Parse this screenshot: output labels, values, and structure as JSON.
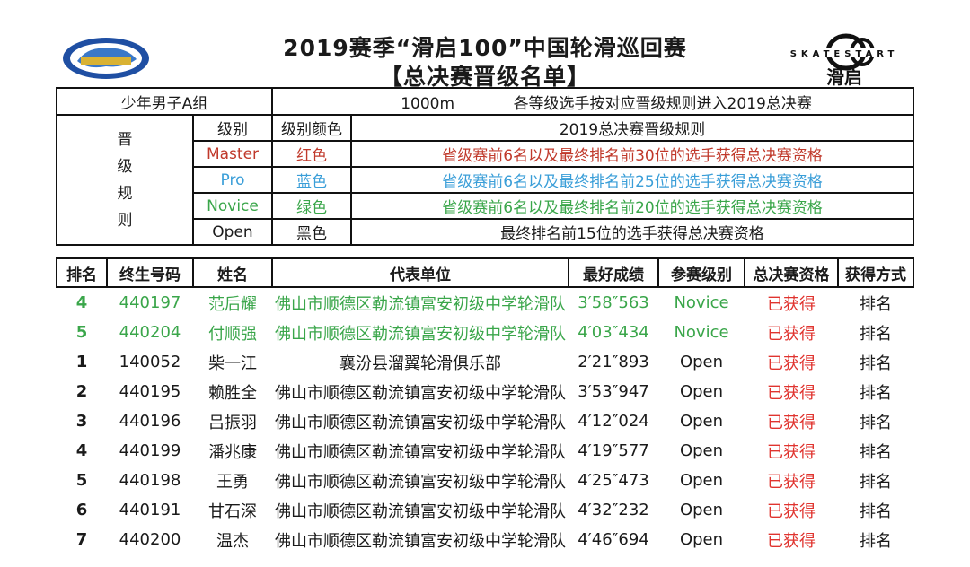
{
  "header": {
    "title_line1": "2019赛季“滑启100”中国轮滑巡回赛",
    "title_line2": "【总决赛晋级名单】",
    "right_logo_text": "SKATESTART",
    "right_logo_cn": "滑启"
  },
  "group": {
    "name": "少年男子A组",
    "distance": "1000m",
    "note": "各等级选手按对应晋级规则进入2019总决赛"
  },
  "rules": {
    "side_label": [
      "晋",
      "级",
      "规",
      "则"
    ],
    "col_level": "级别",
    "col_color": "级别颜色",
    "col_rule": "2019总决赛晋级规则",
    "items": [
      {
        "level": "Master",
        "color_name": "红色",
        "rule": "省级赛前6名以及最终排名前30位的选手获得总决赛资格",
        "hex": "#c0392b"
      },
      {
        "level": "Pro",
        "color_name": "蓝色",
        "rule": "省级赛前6名以及最终排名前25位的选手获得总决赛资格",
        "hex": "#3a9ed8"
      },
      {
        "level": "Novice",
        "color_name": "绿色",
        "rule": "省级赛前6名以及最终排名前20位的选手获得总决赛资格",
        "hex": "#3aa64a"
      },
      {
        "level": "Open",
        "color_name": "黑色",
        "rule": "最终排名前15位的选手获得总决赛资格",
        "hex": "#1a1a1a"
      }
    ]
  },
  "results": {
    "headers": [
      "排名",
      "终生号码",
      "姓名",
      "代表单位",
      "最好成绩",
      "参赛级别",
      "总决赛资格",
      "获得方式"
    ],
    "rows": [
      {
        "rank": "4",
        "id": "440197",
        "name": "范后耀",
        "unit": "佛山市顺德区勒流镇富安初级中学轮滑队",
        "best": "3′58″563",
        "level": "Novice",
        "qualified": "已获得",
        "method": "排名"
      },
      {
        "rank": "5",
        "id": "440204",
        "name": "付顺强",
        "unit": "佛山市顺德区勒流镇富安初级中学轮滑队",
        "best": "4′03″434",
        "level": "Novice",
        "qualified": "已获得",
        "method": "排名"
      },
      {
        "rank": "1",
        "id": "140052",
        "name": "柴一江",
        "unit": "襄汾县溜翼轮滑俱乐部",
        "best": "2′21″893",
        "level": "Open",
        "qualified": "已获得",
        "method": "排名"
      },
      {
        "rank": "2",
        "id": "440195",
        "name": "赖胜全",
        "unit": "佛山市顺德区勒流镇富安初级中学轮滑队",
        "best": "3′53″947",
        "level": "Open",
        "qualified": "已获得",
        "method": "排名"
      },
      {
        "rank": "3",
        "id": "440196",
        "name": "吕振羽",
        "unit": "佛山市顺德区勒流镇富安初级中学轮滑队",
        "best": "4′12″024",
        "level": "Open",
        "qualified": "已获得",
        "method": "排名"
      },
      {
        "rank": "4",
        "id": "440199",
        "name": "潘兆康",
        "unit": "佛山市顺德区勒流镇富安初级中学轮滑队",
        "best": "4′19″577",
        "level": "Open",
        "qualified": "已获得",
        "method": "排名"
      },
      {
        "rank": "5",
        "id": "440198",
        "name": "王勇",
        "unit": "佛山市顺德区勒流镇富安初级中学轮滑队",
        "best": "4′25″473",
        "level": "Open",
        "qualified": "已获得",
        "method": "排名"
      },
      {
        "rank": "6",
        "id": "440191",
        "name": "甘石深",
        "unit": "佛山市顺德区勒流镇富安初级中学轮滑队",
        "best": "4′32″232",
        "level": "Open",
        "qualified": "已获得",
        "method": "排名"
      },
      {
        "rank": "7",
        "id": "440200",
        "name": "温杰",
        "unit": "佛山市顺德区勒流镇富安初级中学轮滑队",
        "best": "4′46″694",
        "level": "Open",
        "qualified": "已获得",
        "method": "排名"
      }
    ]
  }
}
